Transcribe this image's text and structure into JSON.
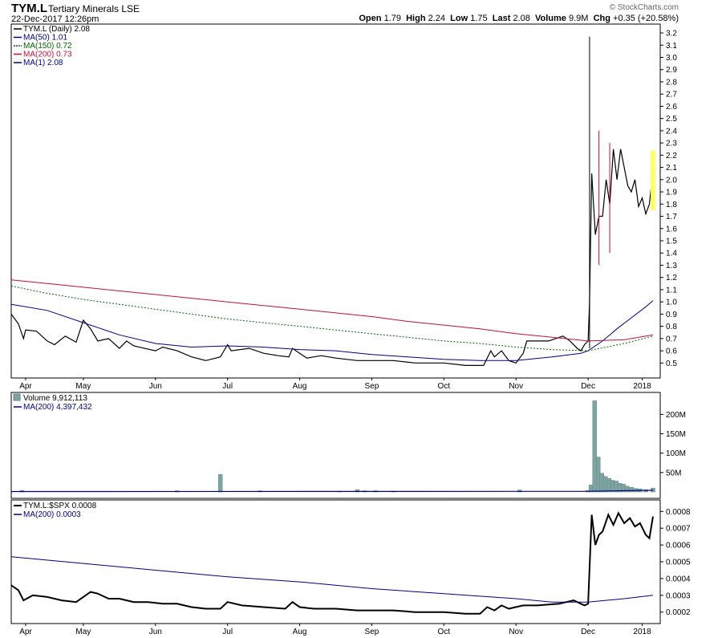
{
  "header": {
    "symbol": "TYM.L",
    "name": "Tertiary Minerals",
    "exchange": "LSE",
    "date": "22-Dec-2017 12:26pm",
    "brand": "© StockCharts.com",
    "quote": {
      "open_label": "Open",
      "open": "1.79",
      "high_label": "High",
      "high": "2.24",
      "low_label": "Low",
      "low": "1.75",
      "last_label": "Last",
      "last": "2.08",
      "volume_label": "Volume",
      "volume": "9.9M",
      "chg_label": "Chg",
      "chg": "+0.35 (+20.58%)"
    }
  },
  "colors": {
    "price": "#000000",
    "ma50": "#000080",
    "ma150": "#006400",
    "ma200": "#c0103a",
    "ma1": "#00008b",
    "volume": "#7fa3a0",
    "highlight": "#ffff66"
  },
  "chart_data": [
    {
      "type": "line",
      "panel": "price",
      "legend": [
        {
          "label": "TYM.L (Daily) 2.08",
          "key": "price"
        },
        {
          "label": "MA(50) 1.01",
          "key": "ma50"
        },
        {
          "label": "MA(150) 0.72",
          "key": "ma150"
        },
        {
          "label": "MA(200) 0.73",
          "key": "ma200"
        },
        {
          "label": "MA(1) 2.08",
          "key": "ma1"
        }
      ],
      "x_labels": [
        "Apr",
        "May",
        "Jun",
        "Jul",
        "Aug",
        "Sep",
        "Oct",
        "Nov",
        "Dec",
        "2018"
      ],
      "x_label_pos": [
        0.2,
        1.0,
        2.0,
        3.0,
        4.0,
        5.0,
        6.0,
        7.0,
        8.0,
        8.75
      ],
      "xlim": [
        0,
        9
      ],
      "ylim": [
        0.43,
        3.22
      ],
      "y_ticks": [
        "0.5",
        "0.6",
        "0.7",
        "0.8",
        "0.9",
        "1.0",
        "1.1",
        "1.2",
        "1.3",
        "1.4",
        "1.5",
        "1.6",
        "1.7",
        "1.8",
        "1.9",
        "2.0",
        "2.1",
        "2.2",
        "2.3",
        "2.4",
        "2.5",
        "2.6",
        "2.7",
        "2.8",
        "2.9",
        "3.0",
        "3.1",
        "3.2"
      ],
      "series": [
        {
          "key": "price",
          "x": [
            0.0,
            0.1,
            0.17,
            0.2,
            0.35,
            0.5,
            0.6,
            0.75,
            0.9,
            1.0,
            1.1,
            1.2,
            1.35,
            1.5,
            1.6,
            1.7,
            1.85,
            2.0,
            2.1,
            2.3,
            2.5,
            2.7,
            2.9,
            3.0,
            3.05,
            3.3,
            3.5,
            3.7,
            3.85,
            3.9,
            4.0,
            4.1,
            4.2,
            4.3,
            4.5,
            4.8,
            5.0,
            5.3,
            5.6,
            6.0,
            6.3,
            6.55,
            6.65,
            6.7,
            6.8,
            6.9,
            7.0,
            7.1,
            7.15,
            7.3,
            7.45,
            7.55,
            7.65,
            7.75,
            7.85,
            7.9,
            7.95,
            8.0,
            8.02,
            8.05,
            8.1,
            8.15,
            8.2,
            8.25,
            8.3,
            8.35,
            8.4,
            8.45,
            8.5,
            8.55,
            8.6,
            8.65,
            8.7,
            8.75,
            8.8,
            8.85,
            8.9
          ],
          "y": [
            0.9,
            0.82,
            0.7,
            0.77,
            0.76,
            0.68,
            0.65,
            0.72,
            0.67,
            0.85,
            0.78,
            0.68,
            0.7,
            0.62,
            0.68,
            0.64,
            0.62,
            0.6,
            0.63,
            0.6,
            0.55,
            0.52,
            0.55,
            0.65,
            0.6,
            0.62,
            0.58,
            0.56,
            0.55,
            0.62,
            0.58,
            0.54,
            0.55,
            0.56,
            0.54,
            0.52,
            0.52,
            0.52,
            0.5,
            0.5,
            0.48,
            0.48,
            0.6,
            0.55,
            0.6,
            0.52,
            0.5,
            0.58,
            0.68,
            0.68,
            0.68,
            0.7,
            0.72,
            0.68,
            0.62,
            0.6,
            0.65,
            0.68,
            1.0,
            2.05,
            1.55,
            1.7,
            1.7,
            2.0,
            1.8,
            2.25,
            2.0,
            2.25,
            2.1,
            1.95,
            1.9,
            2.0,
            1.78,
            1.85,
            1.72,
            1.8,
            2.08
          ]
        },
        {
          "key": "ma50",
          "x": [
            0.0,
            0.5,
            1.0,
            1.5,
            2.0,
            2.5,
            3.0,
            3.5,
            4.0,
            4.5,
            5.0,
            5.5,
            6.0,
            6.5,
            7.0,
            7.5,
            7.9,
            8.0,
            8.2,
            8.4,
            8.6,
            8.8,
            8.9
          ],
          "y": [
            0.98,
            0.93,
            0.83,
            0.73,
            0.66,
            0.63,
            0.64,
            0.63,
            0.61,
            0.6,
            0.57,
            0.55,
            0.53,
            0.52,
            0.52,
            0.55,
            0.58,
            0.6,
            0.68,
            0.78,
            0.87,
            0.96,
            1.01
          ]
        },
        {
          "key": "ma150",
          "x": [
            0.0,
            0.5,
            1.0,
            1.5,
            2.0,
            2.5,
            3.0,
            3.5,
            4.0,
            4.5,
            5.0,
            5.5,
            6.0,
            6.5,
            7.0,
            7.5,
            8.0,
            8.5,
            8.9
          ],
          "y": [
            1.13,
            1.07,
            1.02,
            0.98,
            0.94,
            0.9,
            0.86,
            0.83,
            0.8,
            0.77,
            0.74,
            0.71,
            0.68,
            0.66,
            0.63,
            0.61,
            0.6,
            0.66,
            0.72
          ]
        },
        {
          "key": "ma200",
          "x": [
            0.0,
            0.5,
            1.0,
            1.5,
            2.0,
            2.5,
            3.0,
            3.5,
            4.0,
            4.5,
            5.0,
            5.5,
            6.0,
            6.5,
            7.0,
            7.5,
            8.0,
            8.5,
            8.9
          ],
          "y": [
            1.18,
            1.15,
            1.12,
            1.09,
            1.06,
            1.03,
            1.0,
            0.97,
            0.94,
            0.91,
            0.88,
            0.84,
            0.81,
            0.78,
            0.74,
            0.71,
            0.68,
            0.69,
            0.73
          ]
        }
      ],
      "highlight_bar": {
        "x": 8.9,
        "low": 1.75,
        "high": 2.24
      }
    },
    {
      "type": "bar",
      "panel": "volume",
      "legend": [
        {
          "label": "Volume 9,912,113",
          "key": "volume"
        },
        {
          "label": "MA(200) 4,397,432",
          "key": "ma50"
        }
      ],
      "ylim": [
        0,
        240
      ],
      "y_ticks": [
        "50M",
        "100M",
        "150M",
        "200M"
      ],
      "x": [
        0.15,
        2.3,
        2.9,
        3.45,
        4.55,
        4.8,
        4.9,
        5.05,
        5.3,
        7.05,
        8.0,
        8.04,
        8.09,
        8.14,
        8.19,
        8.24,
        8.29,
        8.34,
        8.39,
        8.44,
        8.49,
        8.54,
        8.6,
        8.66,
        8.72,
        8.8,
        8.9
      ],
      "values": [
        4,
        3,
        45,
        3,
        2,
        6,
        3,
        3,
        2,
        5,
        4,
        18,
        235,
        90,
        48,
        40,
        35,
        30,
        28,
        22,
        20,
        15,
        12,
        9,
        8,
        6,
        10
      ],
      "ma200": {
        "x": [
          0.0,
          7.9,
          8.9
        ],
        "y": [
          1,
          1.5,
          4.4
        ]
      }
    },
    {
      "type": "line",
      "panel": "ratio",
      "legend": [
        {
          "label": "TYM.L:$SPX 0.0008",
          "key": "price"
        },
        {
          "label": "MA(200) 0.0003",
          "key": "ma50"
        }
      ],
      "ylim": [
        0.00017,
        0.00083
      ],
      "y_ticks": [
        "0.0002",
        "0.0003",
        "0.0004",
        "0.0005",
        "0.0006",
        "0.0007",
        "0.0008"
      ],
      "x_labels": [
        "Apr",
        "May",
        "Jun",
        "Jul",
        "Aug",
        "Sep",
        "Oct",
        "Nov",
        "Dec",
        "2018"
      ],
      "x_label_pos": [
        0.2,
        1.0,
        2.0,
        3.0,
        4.0,
        5.0,
        6.0,
        7.0,
        8.0,
        8.75
      ],
      "series": [
        {
          "key": "price",
          "x": [
            0.0,
            0.1,
            0.17,
            0.3,
            0.5,
            0.7,
            0.9,
            1.1,
            1.2,
            1.35,
            1.5,
            1.7,
            1.9,
            2.1,
            2.3,
            2.5,
            2.7,
            2.9,
            3.0,
            3.2,
            3.5,
            3.8,
            3.9,
            4.0,
            4.2,
            4.5,
            4.8,
            5.0,
            5.3,
            5.6,
            6.0,
            6.3,
            6.5,
            6.6,
            6.7,
            6.8,
            6.9,
            7.1,
            7.3,
            7.6,
            7.8,
            7.9,
            7.95,
            8.0,
            8.05,
            8.1,
            8.15,
            8.2,
            8.28,
            8.35,
            8.42,
            8.5,
            8.58,
            8.65,
            8.72,
            8.8,
            8.85,
            8.9
          ],
          "y": [
            0.00036,
            0.00033,
            0.00027,
            0.0003,
            0.00029,
            0.00027,
            0.00026,
            0.00032,
            0.00031,
            0.00028,
            0.00028,
            0.00026,
            0.00026,
            0.00025,
            0.00025,
            0.00023,
            0.00022,
            0.00022,
            0.00026,
            0.00024,
            0.00023,
            0.00022,
            0.00026,
            0.00023,
            0.00022,
            0.00022,
            0.00021,
            0.00021,
            0.00021,
            0.0002,
            0.0002,
            0.00019,
            0.00019,
            0.00023,
            0.00021,
            0.00024,
            0.00022,
            0.00024,
            0.00024,
            0.00025,
            0.00027,
            0.00025,
            0.00024,
            0.00025,
            0.00078,
            0.0006,
            0.00066,
            0.00068,
            0.00078,
            0.00072,
            0.00079,
            0.00073,
            0.00076,
            0.00071,
            0.00073,
            0.00066,
            0.00064,
            0.00077
          ]
        },
        {
          "key": "ma50",
          "x": [
            0.0,
            1.0,
            2.0,
            3.0,
            4.0,
            5.0,
            6.0,
            7.0,
            7.5,
            8.0,
            8.5,
            8.9
          ],
          "y": [
            0.00053,
            0.00049,
            0.00045,
            0.00041,
            0.00038,
            0.00034,
            0.00031,
            0.00028,
            0.00026,
            0.00026,
            0.00028,
            0.0003
          ]
        }
      ]
    }
  ]
}
